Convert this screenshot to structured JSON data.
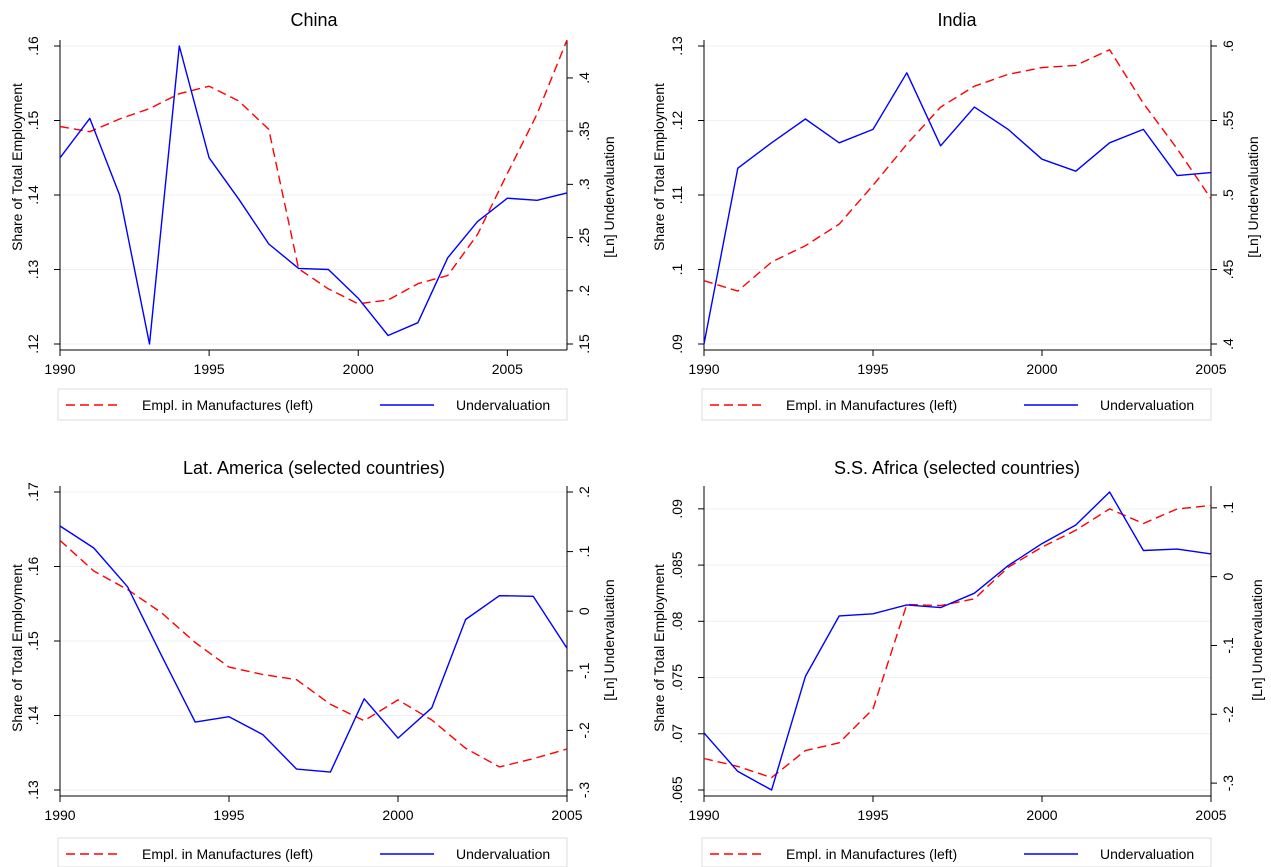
{
  "colors": {
    "employment_line": "#ff0000",
    "undervaluation_line": "#0000ff",
    "title_text": "#1a476f",
    "gridline": "#eaf2f3",
    "axis": "#000000",
    "legend_border": "#dddddd"
  },
  "chart_data": [
    {
      "type": "line",
      "title": "China",
      "ylabel": "Share of Total Employment",
      "y2label": "[Ln] Undervaluation",
      "x_ticks": [
        1990,
        1995,
        2000,
        2005
      ],
      "xlim": [
        1990,
        2007
      ],
      "ylim": [
        0.12,
        0.16
      ],
      "y_ticks": [
        ".12",
        ".13",
        ".14",
        ".15",
        ".16"
      ],
      "y2lim": [
        0.15,
        0.43
      ],
      "y2_ticks": [
        ".15",
        ".2",
        ".25",
        ".3",
        ".35",
        ".4"
      ],
      "grid": true,
      "legend_position": "bottom",
      "series": [
        {
          "name": "Empl. in Manufactures (left)",
          "axis": "left",
          "style": "dashed",
          "x": [
            1990,
            1991,
            1992,
            1993,
            1994,
            1995,
            1996,
            1997,
            1998,
            1999,
            2000,
            2001,
            2002,
            2003,
            2004,
            2005,
            2006,
            2007
          ],
          "values": [
            0.1492,
            0.1485,
            0.1502,
            0.1516,
            0.1536,
            0.1546,
            0.1526,
            0.1488,
            0.1301,
            0.1274,
            0.1254,
            0.1259,
            0.1281,
            0.1292,
            0.1347,
            0.1429,
            0.1509,
            0.1608
          ]
        },
        {
          "name": "Undervaluation",
          "axis": "right",
          "style": "solid",
          "x": [
            1990,
            1991,
            1992,
            1993,
            1994,
            1995,
            1996,
            1997,
            1998,
            1999,
            2000,
            2001,
            2002,
            2003,
            2004,
            2005,
            2006,
            2007
          ],
          "values": [
            0.325,
            0.362,
            0.29,
            0.15,
            0.43,
            0.325,
            0.286,
            0.244,
            0.221,
            0.22,
            0.193,
            0.158,
            0.17,
            0.231,
            0.265,
            0.287,
            0.285,
            0.292
          ]
        }
      ]
    },
    {
      "type": "line",
      "title": "India",
      "ylabel": "Share of Total Employment",
      "y2label": "[Ln] Undervaluation",
      "x_ticks": [
        1990,
        1995,
        2000,
        2005
      ],
      "xlim": [
        1990,
        2005
      ],
      "ylim": [
        0.09,
        0.13
      ],
      "y_ticks": [
        ".09",
        ".1",
        ".11",
        ".12",
        ".13"
      ],
      "y2lim": [
        0.4,
        0.6
      ],
      "y2_ticks": [
        ".4",
        ".45",
        ".5",
        ".55",
        ".6"
      ],
      "grid": true,
      "legend_position": "bottom",
      "series": [
        {
          "name": "Empl. in Manufactures (left)",
          "axis": "left",
          "style": "dashed",
          "x": [
            1990,
            1991,
            1992,
            1993,
            1994,
            1995,
            1996,
            1997,
            1998,
            1999,
            2000,
            2001,
            2002,
            2003,
            2004,
            2005
          ],
          "values": [
            0.0985,
            0.0971,
            0.101,
            0.1032,
            0.1061,
            0.1113,
            0.1168,
            0.1218,
            0.1246,
            0.1262,
            0.1271,
            0.1274,
            0.1295,
            0.1223,
            0.1162,
            0.1095
          ]
        },
        {
          "name": "Undervaluation",
          "axis": "right",
          "style": "solid",
          "x": [
            1990,
            1991,
            1992,
            1993,
            1994,
            1995,
            1996,
            1997,
            1998,
            1999,
            2000,
            2001,
            2002,
            2003,
            2004,
            2005
          ],
          "values": [
            0.4,
            0.518,
            0.535,
            0.551,
            0.535,
            0.544,
            0.582,
            0.533,
            0.559,
            0.544,
            0.524,
            0.516,
            0.535,
            0.544,
            0.513,
            0.515
          ]
        }
      ]
    },
    {
      "type": "line",
      "title": "Lat. America (selected countries)",
      "ylabel": "Share of Total Employment",
      "y2label": "[Ln] Undervaluation",
      "x_ticks": [
        1990,
        1995,
        2000,
        2005
      ],
      "xlim": [
        1990,
        2005
      ],
      "ylim": [
        0.13,
        0.17
      ],
      "y_ticks": [
        ".13",
        ".14",
        ".15",
        ".16",
        ".17"
      ],
      "y2lim": [
        -0.3,
        0.2
      ],
      "y2_ticks": [
        "-.3",
        "-.2",
        "-.1",
        "0",
        ".1",
        ".2"
      ],
      "grid": true,
      "legend_position": "bottom",
      "series": [
        {
          "name": "Empl. in Manufactures (left)",
          "axis": "left",
          "style": "dashed",
          "x": [
            1990,
            1991,
            1992,
            1993,
            1994,
            1995,
            1996,
            1997,
            1998,
            1999,
            2000,
            2001,
            2002,
            2003,
            2004,
            2005
          ],
          "values": [
            0.1635,
            0.1594,
            0.1569,
            0.1538,
            0.1498,
            0.1465,
            0.1455,
            0.1448,
            0.1415,
            0.1393,
            0.1421,
            0.1394,
            0.1356,
            0.1331,
            0.1342,
            0.1355
          ]
        },
        {
          "name": "Undervaluation",
          "axis": "right",
          "style": "solid",
          "x": [
            1990,
            1991,
            1992,
            1993,
            1994,
            1995,
            1996,
            1997,
            1998,
            1999,
            2000,
            2001,
            2002,
            2003,
            2004,
            2005
          ],
          "values": [
            0.143,
            0.106,
            0.041,
            -0.074,
            -0.186,
            -0.177,
            -0.207,
            -0.265,
            -0.27,
            -0.147,
            -0.213,
            -0.162,
            -0.014,
            0.026,
            0.025,
            -0.062
          ]
        }
      ]
    },
    {
      "type": "line",
      "title": "S.S. Africa (selected countries)",
      "ylabel": "Share of Total Employment",
      "y2label": "[Ln] Undervaluation",
      "x_ticks": [
        1990,
        1995,
        2000,
        2005
      ],
      "xlim": [
        1990,
        2005
      ],
      "ylim": [
        0.065,
        0.0915
      ],
      "y_ticks": [
        ".065",
        ".07",
        ".075",
        ".08",
        ".085",
        ".09"
      ],
      "y2lim": [
        -0.31,
        0.123
      ],
      "y2_ticks": [
        "-.3",
        "-.2",
        "-.1",
        "0",
        ".1"
      ],
      "y2_tick_values": [
        -0.3,
        -0.2,
        -0.1,
        0,
        0.1
      ],
      "grid": true,
      "legend_position": "bottom",
      "series": [
        {
          "name": "Empl. in Manufactures (left)",
          "axis": "left",
          "style": "dashed",
          "x": [
            1990,
            1991,
            1992,
            1993,
            1994,
            1995,
            1996,
            1997,
            1998,
            1999,
            2000,
            2001,
            2002,
            2003,
            2004,
            2005
          ],
          "values": [
            0.0678,
            0.0671,
            0.0661,
            0.0685,
            0.0692,
            0.0722,
            0.0815,
            0.0814,
            0.082,
            0.0848,
            0.0866,
            0.0881,
            0.09,
            0.0887,
            0.09,
            0.0903
          ]
        },
        {
          "name": "Undervaluation",
          "axis": "right",
          "style": "solid",
          "x": [
            1990,
            1991,
            1992,
            1993,
            1994,
            1995,
            1996,
            1997,
            1998,
            1999,
            2000,
            2001,
            2002,
            2003,
            2004,
            2005
          ],
          "values": [
            -0.227,
            -0.283,
            -0.31,
            -0.145,
            -0.057,
            -0.054,
            -0.041,
            -0.045,
            -0.024,
            0.016,
            0.048,
            0.075,
            0.123,
            0.038,
            0.04,
            0.033
          ]
        }
      ]
    }
  ]
}
